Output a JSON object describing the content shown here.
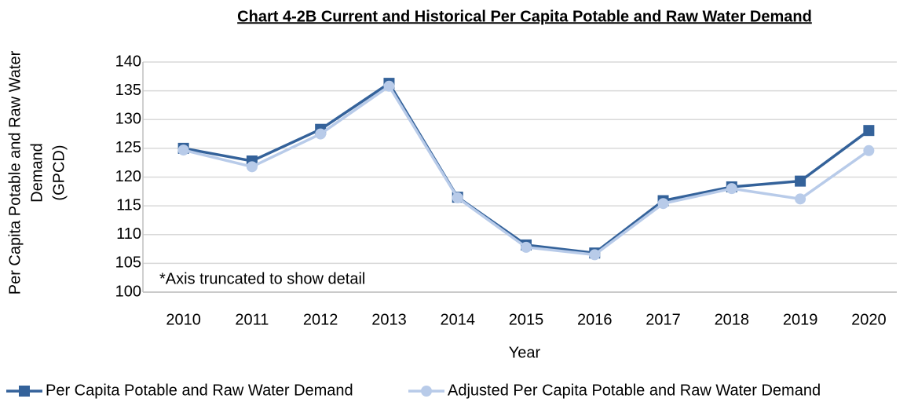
{
  "chart_data": {
    "type": "line",
    "title": "Chart 4-2B Current and Historical Per Capita Potable and Raw Water Demand",
    "ylabel": [
      "Per Capita Potable and Raw Water",
      "Demand",
      "(GPCD)"
    ],
    "xlabel": "Year",
    "annotation": "*Axis truncated to show detail",
    "categories": [
      "2010",
      "2011",
      "2012",
      "2013",
      "2014",
      "2015",
      "2016",
      "2017",
      "2018",
      "2019",
      "2020"
    ],
    "series": [
      {
        "name": "Per Capita Potable and Raw Water Demand",
        "color": "#34629a",
        "marker": "square",
        "values": [
          125,
          122.8,
          128.3,
          136.3,
          116.5,
          108.2,
          106.8,
          115.9,
          118.3,
          119.3,
          128.1
        ]
      },
      {
        "name": "Adjusted Per Capita Potable and Raw Water Demand",
        "color": "#b8cbe9",
        "marker": "circle",
        "values": [
          124.7,
          121.8,
          127.5,
          135.8,
          116.4,
          107.8,
          106.5,
          115.4,
          118.0,
          116.2,
          124.6
        ]
      }
    ],
    "ylim": [
      100,
      140
    ],
    "yticks": [
      100,
      105,
      110,
      115,
      120,
      125,
      130,
      135,
      140
    ],
    "grid": true,
    "legend": "bottom"
  }
}
